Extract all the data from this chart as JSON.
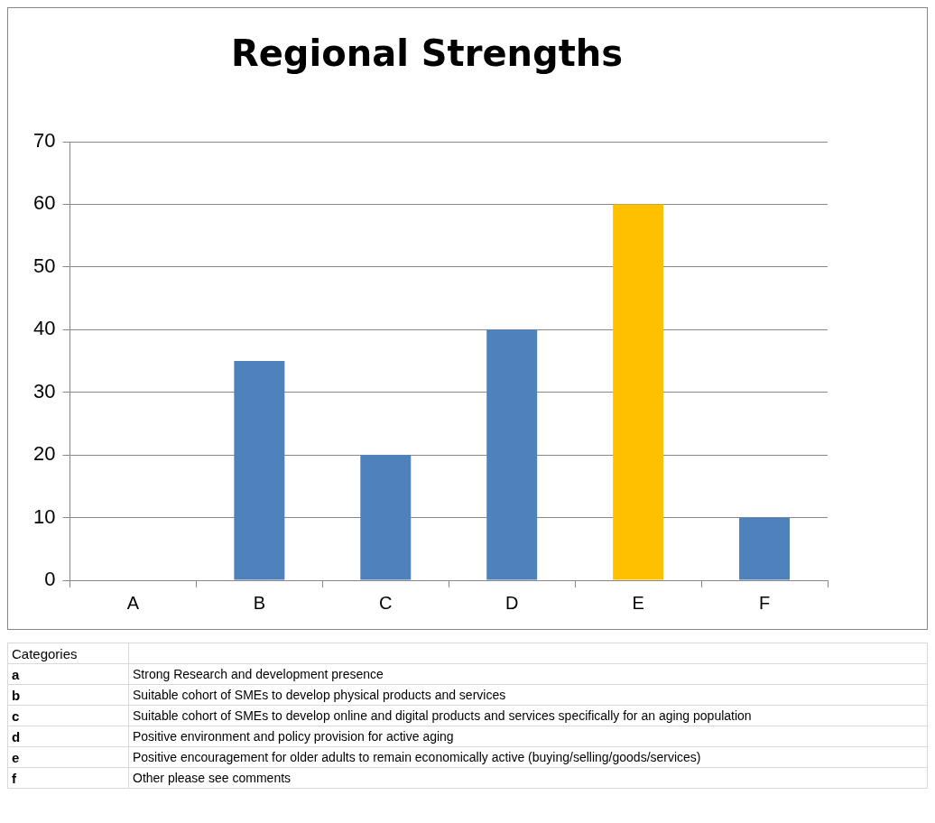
{
  "chart_data": {
    "type": "bar",
    "title": "Regional Strengths",
    "categories": [
      "A",
      "B",
      "C",
      "D",
      "E",
      "F"
    ],
    "values": [
      0,
      35,
      20,
      40,
      60,
      10
    ],
    "colors": [
      "#4f81bd",
      "#4f81bd",
      "#4f81bd",
      "#4f81bd",
      "#ffc000",
      "#4f81bd"
    ],
    "ylim": [
      0,
      70
    ],
    "yticks": [
      0,
      10,
      20,
      30,
      40,
      50,
      60,
      70
    ],
    "grid": "y",
    "legend": false,
    "annotations": [
      "Categories",
      "a",
      "Strong Research and development presence",
      "b",
      "Suitable cohort of SMEs to develop physical products and services",
      "c",
      "Suitable cohort of SMEs to develop online and digital products and services specifically for an aging population",
      "d",
      "Positive environment and policy provision for active aging",
      "e",
      "Positive encouragement for older adults to remain economically active (buying/selling/goods/services)",
      "f",
      "Other please see comments"
    ]
  }
}
